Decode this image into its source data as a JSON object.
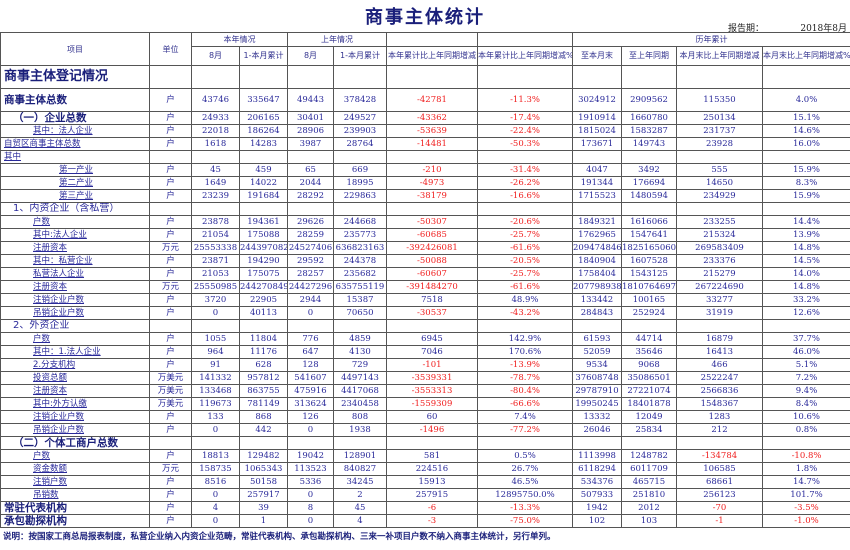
{
  "title": "商事主体统计",
  "report_period_label": "报告期：",
  "report_period_value": "2018年8月",
  "header": {
    "item": "项目",
    "unit": "单位",
    "this_year": "本年情况",
    "last_year": "上年情况",
    "historical": "历年累计",
    "month": "8月",
    "cumulative": "1-本月累计",
    "ytd_change": "本年累计比上年同期增减",
    "ytd_change_pct": "本年累计比上年同期增减%",
    "to_month_end": "至本月末",
    "to_last_year": "至上年同期",
    "me_change": "本月末比上年同期增减",
    "me_change_pct": "本月末比上年同期增减%"
  },
  "colors": {
    "negative": "#f02020",
    "text": "#2a2a9a",
    "title": "#1a1f7a"
  },
  "rows": [
    {
      "style": "section",
      "level": 0,
      "label": "商事主体登记情况",
      "unit": "",
      "values": [
        "",
        "",
        "",
        "",
        "",
        "",
        "",
        "",
        "",
        ""
      ]
    },
    {
      "style": "total",
      "level": 0,
      "label": "商事主体总数",
      "unit": "户",
      "values": [
        "43746",
        "335647",
        "49443",
        "378428",
        "-42781",
        "-11.3%",
        "3024912",
        "2909562",
        "115350",
        "4.0%"
      ]
    },
    {
      "style": "big",
      "level": 1,
      "label": "（一）企业总数",
      "unit": "户",
      "values": [
        "24933",
        "206165",
        "30401",
        "249527",
        "-43362",
        "-17.4%",
        "1910914",
        "1660780",
        "250134",
        "15.1%"
      ]
    },
    {
      "style": "plain",
      "level": 2,
      "label": "其中：法人企业",
      "unit": "户",
      "values": [
        "22018",
        "186264",
        "28906",
        "239903",
        "-53639",
        "-22.4%",
        "1815024",
        "1583287",
        "231737",
        "14.6%"
      ]
    },
    {
      "style": "plain",
      "level": 0,
      "label": "自贸区商事主体总数",
      "unit": "户",
      "values": [
        "1618",
        "14283",
        "3987",
        "28764",
        "-14481",
        "-50.3%",
        "173671",
        "149743",
        "23928",
        "16.0%"
      ]
    },
    {
      "style": "plain",
      "level": 0,
      "label": "其中",
      "unit": "",
      "values": [
        "",
        "",
        "",
        "",
        "",
        "",
        "",
        "",
        "",
        ""
      ]
    },
    {
      "style": "plain",
      "level": 3,
      "label": "第一产业",
      "unit": "户",
      "values": [
        "45",
        "459",
        "65",
        "669",
        "-210",
        "-31.4%",
        "4047",
        "3492",
        "555",
        "15.9%"
      ]
    },
    {
      "style": "plain",
      "level": 3,
      "label": "第二产业",
      "unit": "户",
      "values": [
        "1649",
        "14022",
        "2044",
        "18995",
        "-4973",
        "-26.2%",
        "191344",
        "176694",
        "14650",
        "8.3%"
      ]
    },
    {
      "style": "plain",
      "level": 3,
      "label": "第三产业",
      "unit": "户",
      "values": [
        "23239",
        "191684",
        "28292",
        "229863",
        "-38179",
        "-16.6%",
        "1715523",
        "1480594",
        "234929",
        "15.9%"
      ]
    },
    {
      "style": "sub",
      "level": 1,
      "label": "1、内资企业（含私营）",
      "unit": "",
      "values": [
        "",
        "",
        "",
        "",
        "",
        "",
        "",
        "",
        "",
        ""
      ]
    },
    {
      "style": "plain",
      "level": 2,
      "label": "户数",
      "unit": "户",
      "values": [
        "23878",
        "194361",
        "29626",
        "244668",
        "-50307",
        "-20.6%",
        "1849321",
        "1616066",
        "233255",
        "14.4%"
      ]
    },
    {
      "style": "plain",
      "level": 2,
      "label": "其中:法人企业",
      "unit": "户",
      "values": [
        "21054",
        "175088",
        "28259",
        "235773",
        "-60685",
        "-25.7%",
        "1762965",
        "1547641",
        "215324",
        "13.9%"
      ]
    },
    {
      "style": "plain",
      "level": 2,
      "label": "注册资本",
      "unit": "万元",
      "values": [
        "25553338",
        "244397082",
        "24527406",
        "636823163",
        "-392426081",
        "-61.6%",
        "2094748469",
        "1825165060",
        "269583409",
        "14.8%"
      ]
    },
    {
      "style": "plain",
      "level": 2,
      "label": "其中：私营企业",
      "unit": "户",
      "values": [
        "23871",
        "194290",
        "29592",
        "244378",
        "-50088",
        "-20.5%",
        "1840904",
        "1607528",
        "233376",
        "14.5%"
      ]
    },
    {
      "style": "plain",
      "level": 2,
      "label": "私营法人企业",
      "unit": "户",
      "values": [
        "21053",
        "175075",
        "28257",
        "235682",
        "-60607",
        "-25.7%",
        "1758404",
        "1543125",
        "215279",
        "14.0%"
      ]
    },
    {
      "style": "plain",
      "level": 2,
      "label": "注册资本",
      "unit": "万元",
      "values": [
        "25550985",
        "244270849",
        "24427296",
        "635755119",
        "-391484270",
        "-61.6%",
        "2077989387",
        "1810764697",
        "267224690",
        "14.8%"
      ]
    },
    {
      "style": "plain",
      "level": 2,
      "label": "注销企业户数",
      "unit": "户",
      "values": [
        "3720",
        "22905",
        "2944",
        "15387",
        "7518",
        "48.9%",
        "133442",
        "100165",
        "33277",
        "33.2%"
      ]
    },
    {
      "style": "plain",
      "level": 2,
      "label": "吊销企业户数",
      "unit": "户",
      "values": [
        "0",
        "40113",
        "0",
        "70650",
        "-30537",
        "-43.2%",
        "284843",
        "252924",
        "31919",
        "12.6%"
      ]
    },
    {
      "style": "sub",
      "level": 1,
      "label": "2、外资企业",
      "unit": "",
      "values": [
        "",
        "",
        "",
        "",
        "",
        "",
        "",
        "",
        "",
        ""
      ]
    },
    {
      "style": "plain",
      "level": 2,
      "label": "户数",
      "unit": "户",
      "values": [
        "1055",
        "11804",
        "776",
        "4859",
        "6945",
        "142.9%",
        "61593",
        "44714",
        "16879",
        "37.7%"
      ]
    },
    {
      "style": "plain",
      "level": 2,
      "label": "其中：1.法人企业",
      "unit": "户",
      "values": [
        "964",
        "11176",
        "647",
        "4130",
        "7046",
        "170.6%",
        "52059",
        "35646",
        "16413",
        "46.0%"
      ]
    },
    {
      "style": "plain",
      "level": 2,
      "label": "2.分支机构",
      "unit": "户",
      "values": [
        "91",
        "628",
        "128",
        "729",
        "-101",
        "-13.9%",
        "9534",
        "9068",
        "466",
        "5.1%"
      ]
    },
    {
      "style": "plain",
      "level": 2,
      "label": "投资总额",
      "unit": "万美元",
      "values": [
        "141332",
        "957812",
        "541607",
        "4497143",
        "-3539331",
        "-78.7%",
        "37608748",
        "35086501",
        "2522247",
        "7.2%"
      ]
    },
    {
      "style": "plain",
      "level": 2,
      "label": "注册资本",
      "unit": "万美元",
      "values": [
        "133468",
        "863755",
        "475916",
        "4417068",
        "-3553313",
        "-80.4%",
        "29787910",
        "27221074",
        "2566836",
        "9.4%"
      ]
    },
    {
      "style": "plain",
      "level": 2,
      "label": "其中:外方认缴",
      "unit": "万美元",
      "values": [
        "119673",
        "781149",
        "313624",
        "2340458",
        "-1559309",
        "-66.6%",
        "19950245",
        "18401878",
        "1548367",
        "8.4%"
      ]
    },
    {
      "style": "plain",
      "level": 2,
      "label": "注销企业户数",
      "unit": "户",
      "values": [
        "133",
        "868",
        "126",
        "808",
        "60",
        "7.4%",
        "13332",
        "12049",
        "1283",
        "10.6%"
      ]
    },
    {
      "style": "plain",
      "level": 2,
      "label": "吊销企业户数",
      "unit": "户",
      "values": [
        "0",
        "442",
        "0",
        "1938",
        "-1496",
        "-77.2%",
        "26046",
        "25834",
        "212",
        "0.8%"
      ]
    },
    {
      "style": "big",
      "level": 1,
      "label": "（二）个体工商户总数",
      "unit": "",
      "values": [
        "",
        "",
        "",
        "",
        "",
        "",
        "",
        "",
        "",
        ""
      ]
    },
    {
      "style": "plain",
      "level": 2,
      "label": "户数",
      "unit": "户",
      "values": [
        "18813",
        "129482",
        "19042",
        "128901",
        "581",
        "0.5%",
        "1113998",
        "1248782",
        "-134784",
        "-10.8%"
      ]
    },
    {
      "style": "plain",
      "level": 2,
      "label": "资金数额",
      "unit": "万元",
      "values": [
        "158735",
        "1065343",
        "113523",
        "840827",
        "224516",
        "26.7%",
        "6118294",
        "6011709",
        "106585",
        "1.8%"
      ]
    },
    {
      "style": "plain",
      "level": 2,
      "label": "注销户数",
      "unit": "户",
      "values": [
        "8516",
        "50158",
        "5336",
        "34245",
        "15913",
        "46.5%",
        "534376",
        "465715",
        "68661",
        "14.7%"
      ]
    },
    {
      "style": "plain",
      "level": 2,
      "label": "吊销数",
      "unit": "户",
      "values": [
        "0",
        "257917",
        "0",
        "2",
        "257915",
        "12895750.0%",
        "507933",
        "251810",
        "256123",
        "101.7%"
      ]
    },
    {
      "style": "big",
      "level": 0,
      "label": "常驻代表机构",
      "unit": "户",
      "values": [
        "4",
        "39",
        "8",
        "45",
        "-6",
        "-13.3%",
        "1942",
        "2012",
        "-70",
        "-3.5%"
      ]
    },
    {
      "style": "big",
      "level": 0,
      "label": "承包勘探机构",
      "unit": "户",
      "values": [
        "0",
        "1",
        "0",
        "4",
        "-3",
        "-75.0%",
        "102",
        "103",
        "-1",
        "-1.0%"
      ]
    }
  ],
  "note": "说明：按国家工商总局报表制度，私营企业纳入内资企业范畴，常驻代表机构、承包勘探机构、三来一补项目户数不纳入商事主体统计，另行单列。"
}
